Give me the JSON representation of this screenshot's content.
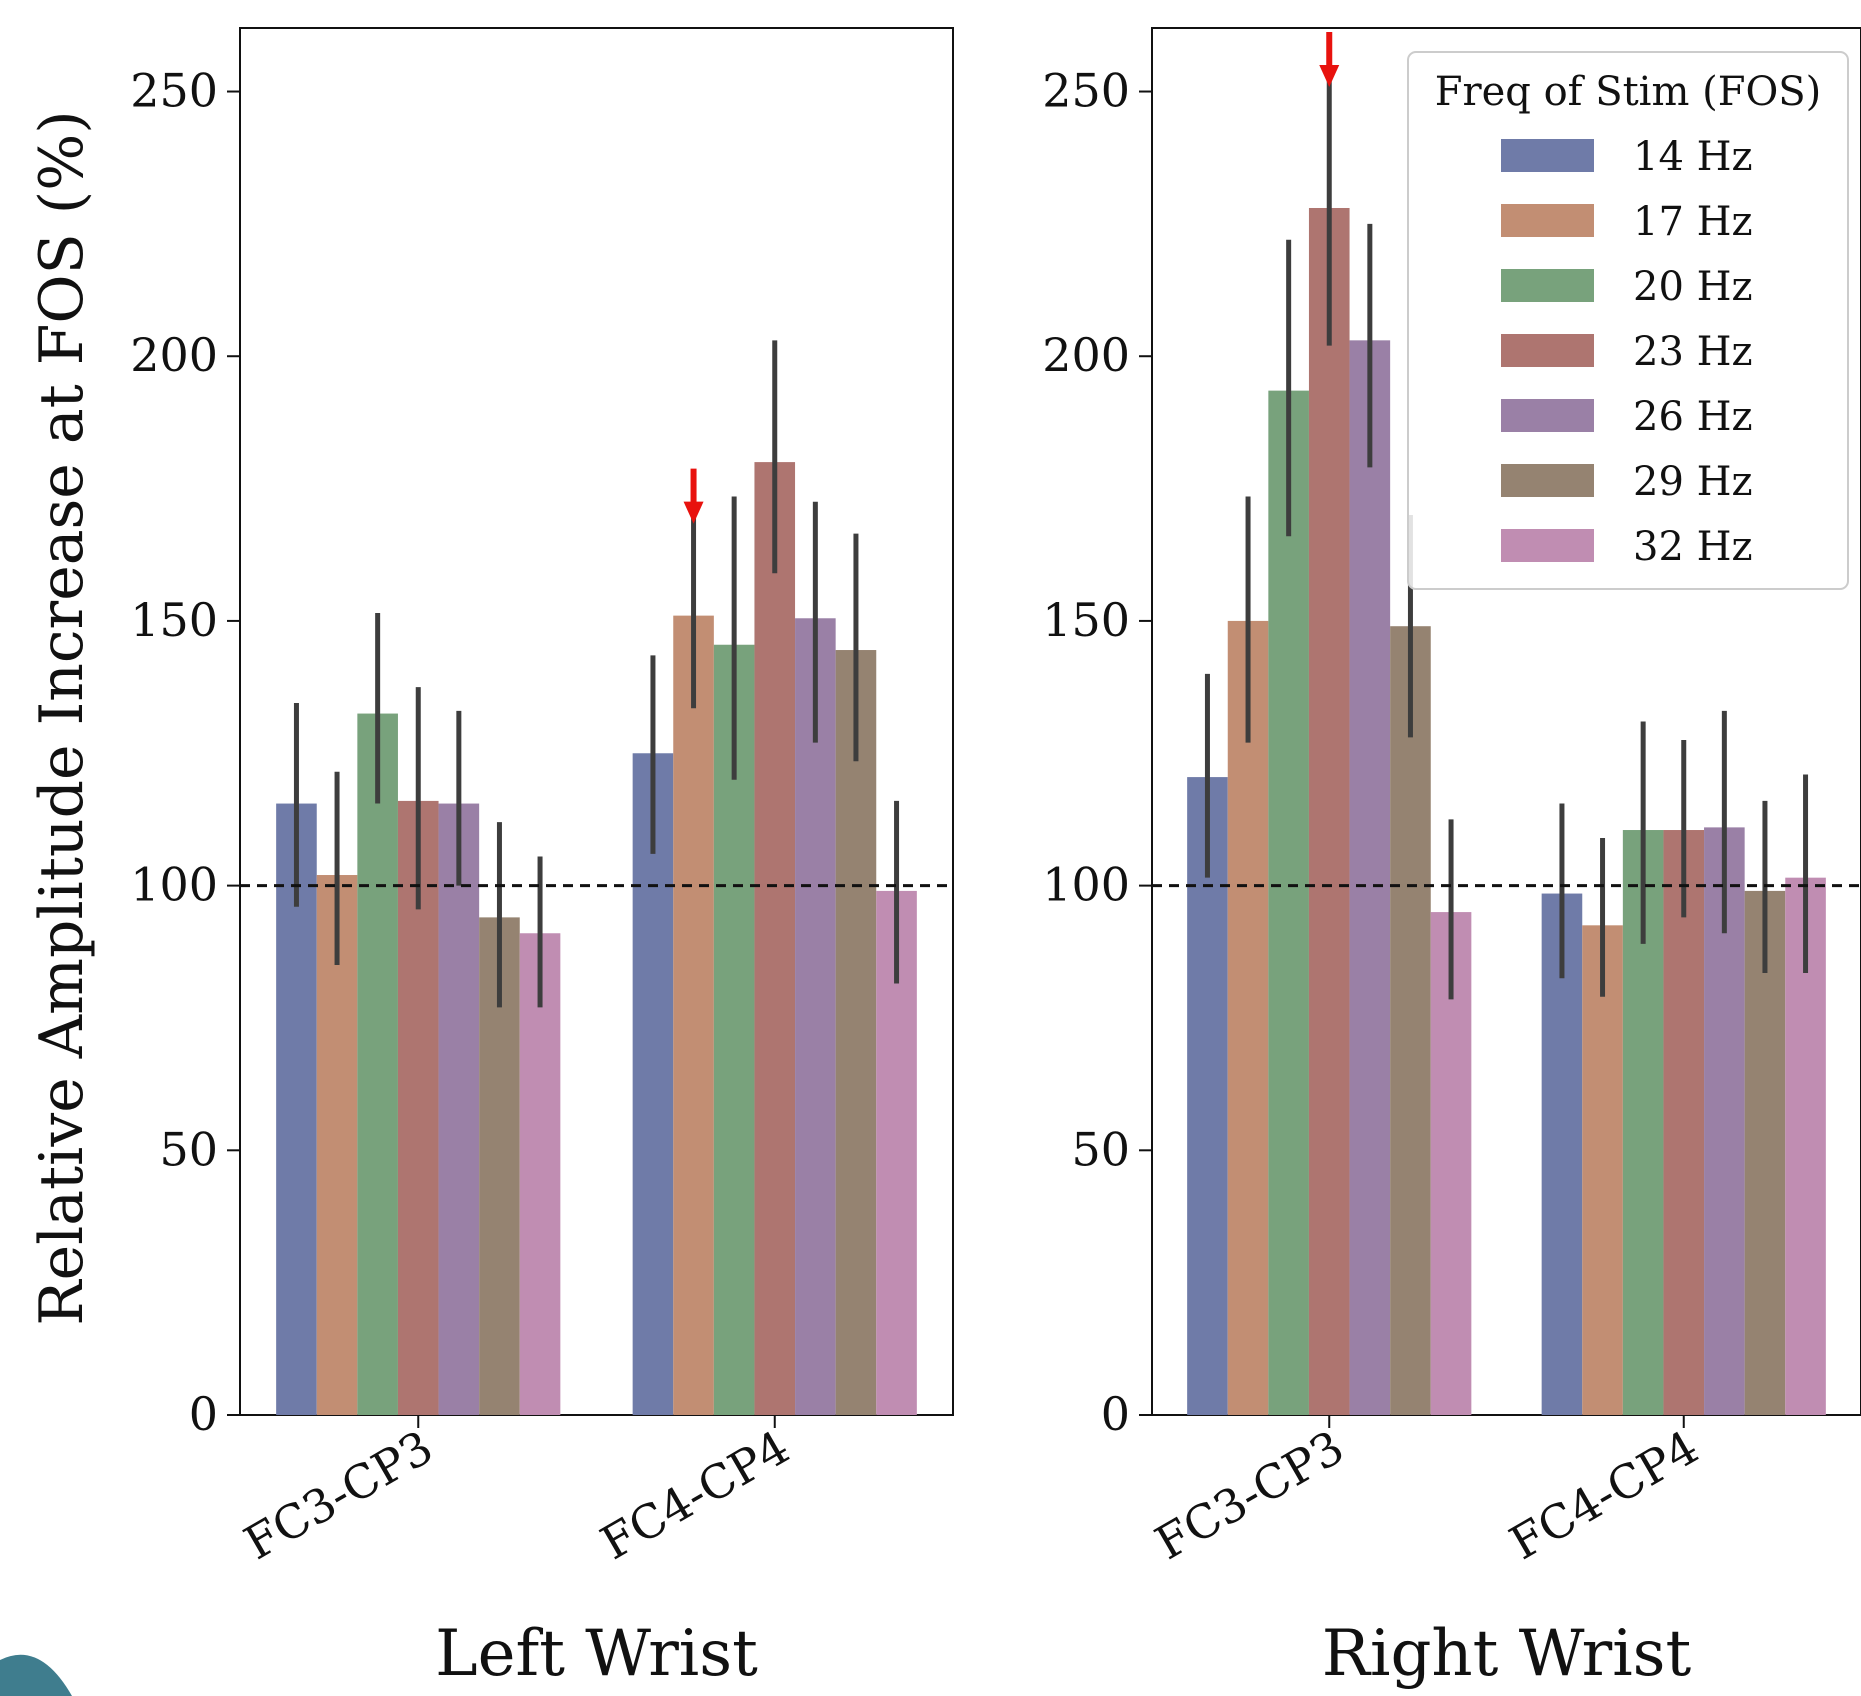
{
  "legend": {
    "title": "Freq of Stim (FOS)",
    "placement": "upper-right of right panel"
  },
  "ylabel": "Relative Amplitude Increase at FOS (%)",
  "chart_data": [
    {
      "type": "bar",
      "xlabel": "Left Wrist",
      "ylabel": "Relative Amplitude Increase at FOS (%)",
      "categories": [
        "FC3-CP3",
        "FC4-CP4"
      ],
      "ylim": [
        0,
        262
      ],
      "yticks": [
        0,
        50,
        100,
        150,
        200,
        250
      ],
      "reference_line": 100,
      "grid": false,
      "series": [
        {
          "name": "14 Hz",
          "color": "#6f7ba8",
          "values": [
            115.5,
            125
          ],
          "err_low": [
            96,
            106
          ],
          "err_high": [
            134.5,
            143.5
          ]
        },
        {
          "name": "17 Hz",
          "color": "#c28e73",
          "values": [
            102,
            151
          ],
          "err_low": [
            85,
            133.5
          ],
          "err_high": [
            121.5,
            169.5
          ]
        },
        {
          "name": "20 Hz",
          "color": "#78a27c",
          "values": [
            132.5,
            145.5
          ],
          "err_low": [
            115.5,
            120
          ],
          "err_high": [
            151.5,
            173.5
          ]
        },
        {
          "name": "23 Hz",
          "color": "#ae7570",
          "values": [
            116,
            180
          ],
          "err_low": [
            95.5,
            159
          ],
          "err_high": [
            137.5,
            203
          ]
        },
        {
          "name": "26 Hz",
          "color": "#9a80a6",
          "values": [
            115.5,
            150.5
          ],
          "err_low": [
            100,
            127
          ],
          "err_high": [
            133,
            172.5
          ]
        },
        {
          "name": "29 Hz",
          "color": "#958371",
          "values": [
            94,
            144.5
          ],
          "err_low": [
            77,
            123.5
          ],
          "err_high": [
            112,
            166.5
          ]
        },
        {
          "name": "32 Hz",
          "color": "#c08db2",
          "values": [
            91,
            99
          ],
          "err_low": [
            77,
            81.5
          ],
          "err_high": [
            105.5,
            116
          ]
        }
      ],
      "annotations": [
        {
          "type": "arrow",
          "color": "#e8120e",
          "category": "FC4-CP4",
          "series": "17 Hz"
        }
      ]
    },
    {
      "type": "bar",
      "xlabel": "Right Wrist",
      "ylabel": "",
      "categories": [
        "FC3-CP3",
        "FC4-CP4"
      ],
      "ylim": [
        0,
        262
      ],
      "yticks": [
        0,
        50,
        100,
        150,
        200,
        250
      ],
      "reference_line": 100,
      "grid": false,
      "series": [
        {
          "name": "14 Hz",
          "color": "#6f7ba8",
          "values": [
            120.5,
            98.5
          ],
          "err_low": [
            101.5,
            82.5
          ],
          "err_high": [
            140,
            115.5
          ]
        },
        {
          "name": "17 Hz",
          "color": "#c28e73",
          "values": [
            150,
            92.5
          ],
          "err_low": [
            127,
            79
          ],
          "err_high": [
            173.5,
            109
          ]
        },
        {
          "name": "20 Hz",
          "color": "#78a27c",
          "values": [
            193.5,
            110.5
          ],
          "err_low": [
            166,
            89
          ],
          "err_high": [
            222,
            131
          ]
        },
        {
          "name": "23 Hz",
          "color": "#ae7570",
          "values": [
            228,
            110.5
          ],
          "err_low": [
            202,
            94
          ],
          "err_high": [
            252,
            127.5
          ]
        },
        {
          "name": "26 Hz",
          "color": "#9a80a6",
          "values": [
            203,
            111
          ],
          "err_low": [
            179,
            91
          ],
          "err_high": [
            225,
            133
          ]
        },
        {
          "name": "29 Hz",
          "color": "#958371",
          "values": [
            149,
            99
          ],
          "err_low": [
            128,
            83.5
          ],
          "err_high": [
            170,
            116
          ]
        },
        {
          "name": "32 Hz",
          "color": "#c08db2",
          "values": [
            95,
            101.5
          ],
          "err_low": [
            78.5,
            83.5
          ],
          "err_high": [
            112.5,
            121
          ]
        }
      ],
      "annotations": [
        {
          "type": "arrow",
          "color": "#e8120e",
          "category": "FC3-CP3",
          "series": "23 Hz"
        }
      ]
    }
  ]
}
